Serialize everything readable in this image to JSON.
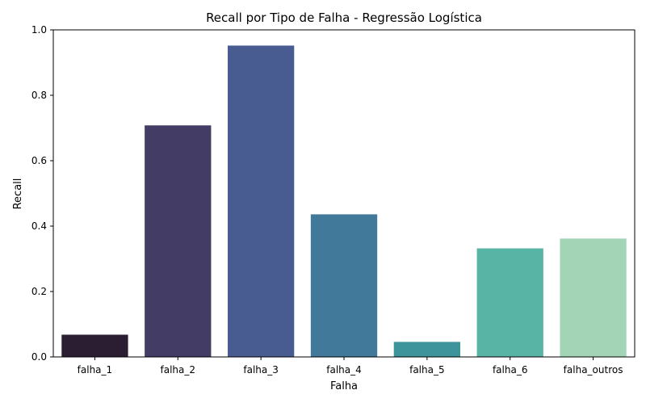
{
  "chart_data": {
    "type": "bar",
    "title": "Recall por Tipo de Falha - Regressão Logística",
    "xlabel": "Falha",
    "ylabel": "Recall",
    "ylim": [
      0,
      1.0
    ],
    "yticks": [
      "0.0",
      "0.2",
      "0.4",
      "0.6",
      "0.8",
      "1.0"
    ],
    "ytick_values": [
      0,
      0.2,
      0.4,
      0.6,
      0.8,
      1.0
    ],
    "categories": [
      "falha_1",
      "falha_2",
      "falha_3",
      "falha_4",
      "falha_5",
      "falha_6",
      "falha_outros"
    ],
    "values": [
      0.068,
      0.708,
      0.952,
      0.436,
      0.046,
      0.332,
      0.362
    ],
    "colors": [
      "#2c1e32",
      "#433c65",
      "#485c91",
      "#41799a",
      "#3d949b",
      "#58b5a5",
      "#a2d4b5"
    ],
    "grid": false,
    "legend": "none"
  }
}
